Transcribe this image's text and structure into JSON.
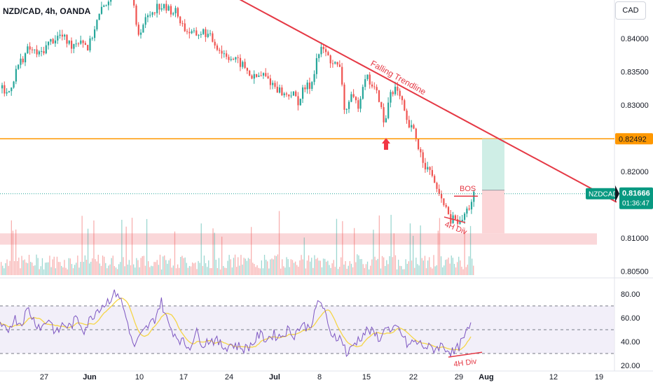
{
  "header": {
    "symbol_title": "NZD/CAD, 4h, OANDA",
    "currency_button": "CAD"
  },
  "price_axis": {
    "ticks": [
      "0.84000",
      "0.83500",
      "0.83000",
      "0.82000",
      "0.81000",
      "0.80500"
    ]
  },
  "rsi_axis": {
    "ticks": [
      "80.00",
      "60.00",
      "40.00",
      "20.00"
    ]
  },
  "time_axis": {
    "ticks": [
      "27",
      "Jun",
      "10",
      "17",
      "24",
      "Jul",
      "8",
      "15",
      "22",
      "29",
      "Aug",
      "12",
      "19"
    ]
  },
  "badges": {
    "resistance_label": "0.82492",
    "symbol": "NZDCAD",
    "last_price": "0.81666",
    "countdown": "01:36:47"
  },
  "annotations": {
    "trendline_label": "Falling Trendline",
    "bos_label": "BOS",
    "div_label_price": "4H Div",
    "div_label_rsi": "4H Div"
  },
  "colors": {
    "up": "#26a69a",
    "down": "#ef5350",
    "trendline": "#e53945",
    "level": "#ff9800",
    "rsi": "#7e57c2",
    "rsi_ma": "#f5d547",
    "label_text": "#e53945"
  },
  "chart_data": {
    "type": "candlestick",
    "symbol": "NZD/CAD",
    "timeframe": "4h",
    "source": "OANDA",
    "price_range": [
      0.8035,
      0.8455
    ],
    "price_path": [
      [
        0,
        0.8325
      ],
      [
        10,
        0.8315
      ],
      [
        25,
        0.836
      ],
      [
        40,
        0.8385
      ],
      [
        55,
        0.8375
      ],
      [
        70,
        0.8395
      ],
      [
        85,
        0.8405
      ],
      [
        100,
        0.839
      ],
      [
        115,
        0.84
      ],
      [
        125,
        0.8385
      ],
      [
        135,
        0.842
      ],
      [
        145,
        0.8445
      ],
      [
        160,
        0.847
      ],
      [
        175,
        0.848
      ],
      [
        188,
        0.846
      ],
      [
        195,
        0.8405
      ],
      [
        205,
        0.8425
      ],
      [
        215,
        0.844
      ],
      [
        225,
        0.845
      ],
      [
        235,
        0.8445
      ],
      [
        250,
        0.844
      ],
      [
        262,
        0.8415
      ],
      [
        275,
        0.8405
      ],
      [
        290,
        0.841
      ],
      [
        300,
        0.84
      ],
      [
        315,
        0.838
      ],
      [
        330,
        0.837
      ],
      [
        345,
        0.836
      ],
      [
        360,
        0.834
      ],
      [
        375,
        0.8345
      ],
      [
        390,
        0.833
      ],
      [
        405,
        0.8315
      ],
      [
        415,
        0.8318
      ],
      [
        425,
        0.8305
      ],
      [
        433,
        0.8325
      ],
      [
        443,
        0.833
      ],
      [
        452,
        0.8375
      ],
      [
        460,
        0.8385
      ],
      [
        468,
        0.837
      ],
      [
        478,
        0.836
      ],
      [
        486,
        0.835
      ],
      [
        490,
        0.829
      ],
      [
        500,
        0.831
      ],
      [
        510,
        0.83
      ],
      [
        520,
        0.8345
      ],
      [
        530,
        0.833
      ],
      [
        540,
        0.831
      ],
      [
        548,
        0.8265
      ],
      [
        555,
        0.832
      ],
      [
        563,
        0.8325
      ],
      [
        572,
        0.8305
      ],
      [
        580,
        0.827
      ],
      [
        590,
        0.826
      ],
      [
        598,
        0.823
      ],
      [
        608,
        0.8205
      ],
      [
        618,
        0.819
      ],
      [
        625,
        0.816
      ],
      [
        633,
        0.8155
      ],
      [
        640,
        0.8125
      ],
      [
        648,
        0.813
      ],
      [
        655,
        0.812
      ],
      [
        662,
        0.8135
      ],
      [
        670,
        0.815
      ],
      [
        676,
        0.8167
      ]
    ],
    "resistance_level": 0.82492,
    "last_price": 0.81666,
    "trendline": [
      [
        340,
        0.846
      ],
      [
        880,
        0.8154
      ]
    ],
    "support_zone": [
      0.809,
      0.8107
    ],
    "position": {
      "entry": 0.8172,
      "target": 0.8249,
      "stop": 0.8107
    },
    "bos_price": 0.8166,
    "rsi": {
      "range": [
        20,
        88
      ],
      "levels": [
        70,
        50,
        30
      ],
      "path": [
        [
          0,
          53
        ],
        [
          10,
          48
        ],
        [
          20,
          60
        ],
        [
          30,
          55
        ],
        [
          40,
          68
        ],
        [
          50,
          56
        ],
        [
          60,
          52
        ],
        [
          70,
          60
        ],
        [
          80,
          46
        ],
        [
          90,
          55
        ],
        [
          100,
          52
        ],
        [
          110,
          60
        ],
        [
          120,
          50
        ],
        [
          130,
          60
        ],
        [
          140,
          68
        ],
        [
          150,
          72
        ],
        [
          160,
          78
        ],
        [
          168,
          82
        ],
        [
          175,
          70
        ],
        [
          185,
          50
        ],
        [
          190,
          35
        ],
        [
          198,
          42
        ],
        [
          210,
          52
        ],
        [
          220,
          58
        ],
        [
          230,
          74
        ],
        [
          240,
          55
        ],
        [
          250,
          46
        ],
        [
          260,
          40
        ],
        [
          270,
          35
        ],
        [
          280,
          48
        ],
        [
          290,
          38
        ],
        [
          300,
          42
        ],
        [
          310,
          40
        ],
        [
          320,
          35
        ],
        [
          330,
          38
        ],
        [
          340,
          36
        ],
        [
          350,
          34
        ],
        [
          360,
          38
        ],
        [
          370,
          46
        ],
        [
          380,
          42
        ],
        [
          390,
          46
        ],
        [
          400,
          44
        ],
        [
          410,
          50
        ],
        [
          420,
          46
        ],
        [
          430,
          54
        ],
        [
          440,
          52
        ],
        [
          448,
          60
        ],
        [
          455,
          76
        ],
        [
          462,
          68
        ],
        [
          470,
          48
        ],
        [
          480,
          45
        ],
        [
          490,
          40
        ],
        [
          495,
          28
        ],
        [
          505,
          38
        ],
        [
          515,
          44
        ],
        [
          525,
          50
        ],
        [
          535,
          46
        ],
        [
          545,
          42
        ],
        [
          550,
          56
        ],
        [
          558,
          46
        ],
        [
          566,
          52
        ],
        [
          574,
          46
        ],
        [
          582,
          36
        ],
        [
          590,
          40
        ],
        [
          600,
          38
        ],
        [
          610,
          35
        ],
        [
          620,
          34
        ],
        [
          630,
          37
        ],
        [
          640,
          33
        ],
        [
          648,
          30
        ],
        [
          655,
          36
        ],
        [
          662,
          42
        ],
        [
          668,
          50
        ],
        [
          674,
          54
        ]
      ]
    }
  }
}
